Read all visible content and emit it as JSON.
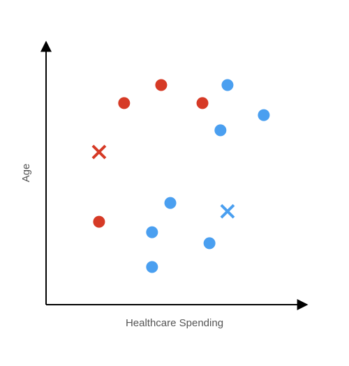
{
  "chart_data": {
    "type": "scatter",
    "x_label": "Healthcare Spending",
    "y_label": "Age",
    "xlim": [
      0,
      100
    ],
    "ylim": [
      0,
      100
    ],
    "series": [
      {
        "color": "#d63a26",
        "marker": "o",
        "x": [
          29.9,
          44.1,
          59.9,
          20.3
        ],
        "values": [
          77.1,
          84.0,
          77.1,
          31.7
        ]
      },
      {
        "color": "#4a9ff0",
        "marker": "o",
        "x": [
          69.5,
          83.4,
          66.8,
          47.6,
          40.6,
          62.6,
          40.6
        ],
        "values": [
          84.0,
          72.5,
          66.7,
          38.9,
          27.7,
          23.5,
          14.4
        ]
      },
      {
        "color": "#d63a26",
        "marker": "x",
        "x": [
          20.3
        ],
        "values": [
          58.4
        ]
      },
      {
        "color": "#4a9ff0",
        "marker": "x",
        "x": [
          69.5
        ],
        "values": [
          35.7
        ]
      }
    ]
  }
}
